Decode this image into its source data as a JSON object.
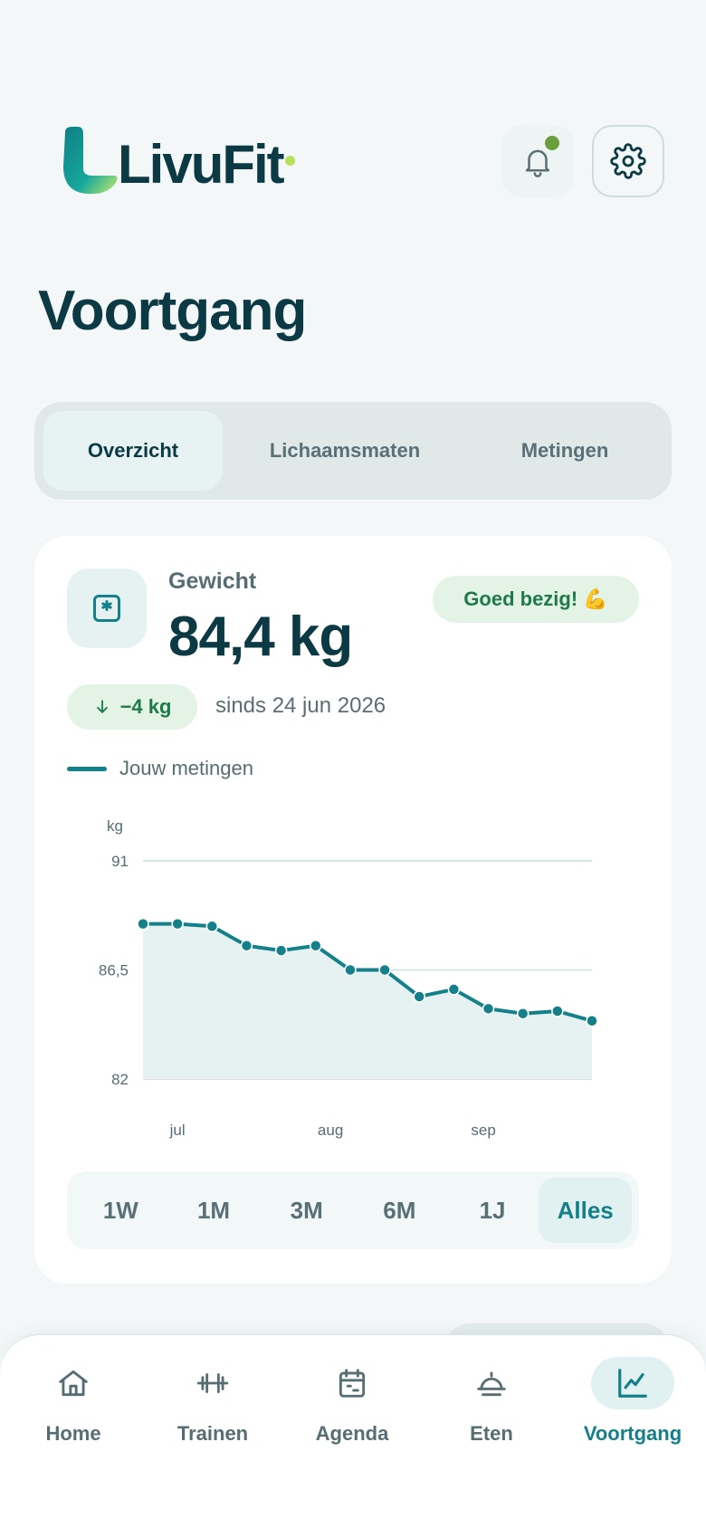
{
  "app": {
    "logo_text": "LivuFit"
  },
  "header": {
    "notification_active": true
  },
  "page": {
    "title": "Voortgang"
  },
  "tabs": [
    {
      "label": "Overzicht",
      "active": true
    },
    {
      "label": "Lichaamsmaten",
      "active": false
    },
    {
      "label": "Metingen",
      "active": false
    }
  ],
  "weight_card": {
    "label": "Gewicht",
    "value": "84,4 kg",
    "praise": "Goed bezig! 💪",
    "delta": "−4 kg",
    "since": "sinds 24 jun 2026",
    "legend": "Jouw metingen"
  },
  "chart_data": {
    "type": "area",
    "ylabel": "kg",
    "ylim": [
      82,
      91
    ],
    "yticks": [
      "91",
      "86,5",
      "82"
    ],
    "xticks": [
      "jul",
      "aug",
      "sep"
    ],
    "x": [
      "2026-06-24",
      "2026-07-01",
      "2026-07-08",
      "2026-07-15",
      "2026-07-22",
      "2026-07-29",
      "2026-08-05",
      "2026-08-12",
      "2026-08-19",
      "2026-08-26",
      "2026-09-02",
      "2026-09-09",
      "2026-09-16",
      "2026-09-23"
    ],
    "series": [
      {
        "name": "Jouw metingen",
        "values": [
          88.4,
          88.4,
          88.3,
          87.5,
          87.3,
          87.5,
          86.5,
          86.5,
          85.4,
          85.7,
          84.9,
          84.7,
          84.8,
          84.4
        ]
      }
    ],
    "grid": true,
    "color": "#14808a"
  },
  "ranges": [
    {
      "label": "1W",
      "active": false
    },
    {
      "label": "1M",
      "active": false
    },
    {
      "label": "3M",
      "active": false
    },
    {
      "label": "6M",
      "active": false
    },
    {
      "label": "1J",
      "active": false
    },
    {
      "label": "Alles",
      "active": true
    }
  ],
  "nav": [
    {
      "label": "Home",
      "icon": "home-icon",
      "active": false
    },
    {
      "label": "Trainen",
      "icon": "dumbbell-icon",
      "active": false
    },
    {
      "label": "Agenda",
      "icon": "calendar-icon",
      "active": false
    },
    {
      "label": "Eten",
      "icon": "cloche-icon",
      "active": false
    },
    {
      "label": "Voortgang",
      "icon": "chart-icon",
      "active": true
    }
  ],
  "colors": {
    "accent": "#14808a",
    "dark": "#0b3a44",
    "success": "#1f7a4a",
    "lime": "#b8e05a"
  }
}
